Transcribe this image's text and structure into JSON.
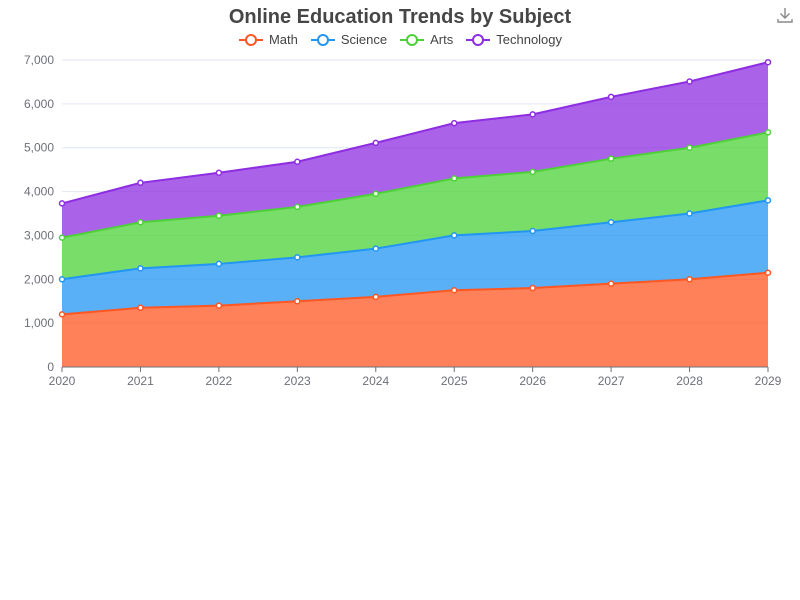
{
  "chart_data": {
    "type": "area",
    "stacked": true,
    "title": "Online Education Trends by Subject",
    "categories": [
      "2020",
      "2021",
      "2022",
      "2023",
      "2024",
      "2025",
      "2026",
      "2027",
      "2028",
      "2029"
    ],
    "y_ticks": [
      "0",
      "1,000",
      "2,000",
      "3,000",
      "4,000",
      "5,000",
      "6,000",
      "7,000"
    ],
    "ylim": [
      0,
      7000
    ],
    "grid": true,
    "legend_position": "top-center",
    "series": [
      {
        "name": "Math",
        "color": "#FF5722",
        "values": [
          1200,
          1350,
          1400,
          1500,
          1600,
          1750,
          1800,
          1900,
          2000,
          2150
        ]
      },
      {
        "name": "Science",
        "color": "#2196F3",
        "values": [
          800,
          900,
          950,
          1000,
          1100,
          1250,
          1300,
          1400,
          1500,
          1650
        ]
      },
      {
        "name": "Arts",
        "color": "#4CD137",
        "values": [
          950,
          1050,
          1100,
          1150,
          1250,
          1300,
          1350,
          1450,
          1500,
          1550
        ]
      },
      {
        "name": "Technology",
        "color": "#8E2DE2",
        "values": [
          780,
          900,
          980,
          1030,
          1160,
          1260,
          1310,
          1410,
          1510,
          1600
        ]
      }
    ]
  },
  "toolbar": {
    "download_icon": "download-icon"
  }
}
